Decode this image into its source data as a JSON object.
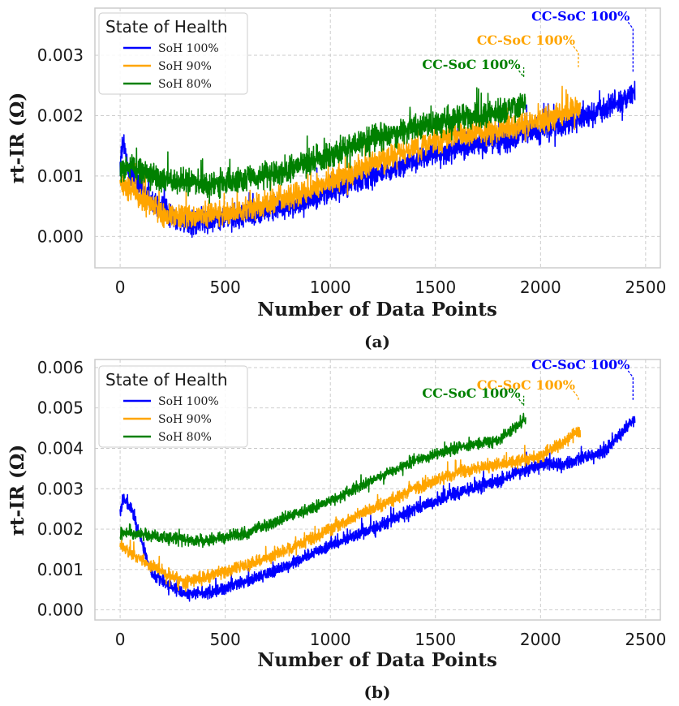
{
  "chart_data": [
    {
      "type": "line",
      "panel": "(a)",
      "xlabel": "Number of Data Points",
      "ylabel": "rt-IR (Ω)",
      "xlim": [
        -120,
        2570
      ],
      "ylim": [
        -0.00052,
        0.00378
      ],
      "xticks": [
        0,
        500,
        1000,
        1500,
        2000,
        2500
      ],
      "yticks": [
        0.0,
        0.001,
        0.002,
        0.003
      ],
      "ytick_labels": [
        "0.000",
        "0.001",
        "0.002",
        "0.003"
      ],
      "grid": true,
      "legend": {
        "title": "State of Health",
        "position": "top-left"
      },
      "series": [
        {
          "name": "SoH 100%",
          "color": "#0000ff",
          "n_points": 2450,
          "noise": 0.00028,
          "trend": [
            [
              0,
              0.0012
            ],
            [
              15,
              0.00155
            ],
            [
              40,
              0.0011
            ],
            [
              150,
              0.0006
            ],
            [
              300,
              0.0002
            ],
            [
              400,
              0.00025
            ],
            [
              600,
              0.00035
            ],
            [
              800,
              0.0005
            ],
            [
              1000,
              0.00075
            ],
            [
              1200,
              0.001
            ],
            [
              1400,
              0.00125
            ],
            [
              1600,
              0.00145
            ],
            [
              1800,
              0.0016
            ],
            [
              2000,
              0.00175
            ],
            [
              2200,
              0.00195
            ],
            [
              2440,
              0.00235
            ]
          ]
        },
        {
          "name": "SoH 90%",
          "color": "#ffa500",
          "n_points": 2190,
          "noise": 0.00028,
          "trend": [
            [
              0,
              0.0009
            ],
            [
              40,
              0.0008
            ],
            [
              200,
              0.00035
            ],
            [
              400,
              0.00035
            ],
            [
              600,
              0.00045
            ],
            [
              800,
              0.00065
            ],
            [
              1000,
              0.0009
            ],
            [
              1200,
              0.0012
            ],
            [
              1400,
              0.00145
            ],
            [
              1600,
              0.0017
            ],
            [
              1800,
              0.00175
            ],
            [
              2000,
              0.0019
            ],
            [
              2180,
              0.00215
            ]
          ]
        },
        {
          "name": "SoH 80%",
          "color": "#008000",
          "n_points": 1930,
          "noise": 0.0003,
          "trend": [
            [
              0,
              0.0011
            ],
            [
              50,
              0.00115
            ],
            [
              200,
              0.00095
            ],
            [
              400,
              0.00085
            ],
            [
              600,
              0.00095
            ],
            [
              800,
              0.0011
            ],
            [
              1000,
              0.00135
            ],
            [
              1200,
              0.0016
            ],
            [
              1400,
              0.0018
            ],
            [
              1600,
              0.00195
            ],
            [
              1800,
              0.00205
            ],
            [
              1920,
              0.0022
            ]
          ]
        }
      ],
      "annotations": [
        {
          "text": "CC-SoC 100%",
          "color": "#0000ff",
          "x": 2440,
          "y": 0.0036,
          "end_y": 0.0027,
          "label_x": 2440,
          "label_y": 0.0036
        },
        {
          "text": "CC-SoC 100%",
          "color": "#ffa500",
          "x": 2180,
          "y": 0.0032,
          "end_y": 0.0028,
          "label_x": 2180,
          "label_y": 0.0032
        },
        {
          "text": "CC-SoC 100%",
          "color": "#008000",
          "x": 1920,
          "y": 0.0028,
          "end_y": 0.0028,
          "label_x": 1920,
          "label_y": 0.0028
        }
      ]
    },
    {
      "type": "line",
      "panel": "(b)",
      "xlabel": "Number of Data Points",
      "ylabel": "rt-IR (Ω)",
      "xlim": [
        -120,
        2570
      ],
      "ylim": [
        -0.00025,
        0.0062
      ],
      "xticks": [
        0,
        500,
        1000,
        1500,
        2000,
        2500
      ],
      "yticks": [
        0.0,
        0.001,
        0.002,
        0.003,
        0.004,
        0.005,
        0.006
      ],
      "ytick_labels": [
        "0.000",
        "0.001",
        "0.002",
        "0.003",
        "0.004",
        "0.005",
        "0.006"
      ],
      "grid": true,
      "legend": {
        "title": "State of Health",
        "position": "top-left"
      },
      "series": [
        {
          "name": "SoH 100%",
          "color": "#0000ff",
          "n_points": 2450,
          "noise": 0.00022,
          "trend": [
            [
              0,
              0.0024
            ],
            [
              15,
              0.0028
            ],
            [
              60,
              0.0024
            ],
            [
              150,
              0.0009
            ],
            [
              300,
              0.0004
            ],
            [
              400,
              0.0004
            ],
            [
              600,
              0.0007
            ],
            [
              800,
              0.0011
            ],
            [
              1000,
              0.0016
            ],
            [
              1200,
              0.002
            ],
            [
              1400,
              0.0025
            ],
            [
              1600,
              0.0029
            ],
            [
              1800,
              0.0032
            ],
            [
              2000,
              0.0036
            ],
            [
              2100,
              0.0036
            ],
            [
              2300,
              0.0039
            ],
            [
              2440,
              0.0047
            ]
          ]
        },
        {
          "name": "SoH 90%",
          "color": "#ffa500",
          "n_points": 2190,
          "noise": 0.00022,
          "trend": [
            [
              0,
              0.0016
            ],
            [
              50,
              0.0014
            ],
            [
              150,
              0.0011
            ],
            [
              300,
              0.0007
            ],
            [
              400,
              0.0008
            ],
            [
              600,
              0.0011
            ],
            [
              800,
              0.0015
            ],
            [
              1000,
              0.002
            ],
            [
              1200,
              0.0025
            ],
            [
              1400,
              0.003
            ],
            [
              1600,
              0.0034
            ],
            [
              1800,
              0.0036
            ],
            [
              2000,
              0.0038
            ],
            [
              2180,
              0.0044
            ]
          ]
        },
        {
          "name": "SoH 80%",
          "color": "#008000",
          "n_points": 1930,
          "noise": 0.0002,
          "trend": [
            [
              0,
              0.0019
            ],
            [
              50,
              0.0019
            ],
            [
              200,
              0.0018
            ],
            [
              400,
              0.0017
            ],
            [
              600,
              0.0019
            ],
            [
              800,
              0.0023
            ],
            [
              1000,
              0.0027
            ],
            [
              1200,
              0.0032
            ],
            [
              1400,
              0.0037
            ],
            [
              1600,
              0.004
            ],
            [
              1800,
              0.0042
            ],
            [
              1920,
              0.0047
            ]
          ]
        }
      ],
      "annotations": [
        {
          "text": "CC-SoC 100%",
          "color": "#0000ff",
          "x": 2440,
          "y": 0.006,
          "end_y": 0.0052,
          "label_x": 2440,
          "label_y": 0.006
        },
        {
          "text": "CC-SoC 100%",
          "color": "#ffa500",
          "x": 2180,
          "y": 0.0055,
          "end_y": 0.0052,
          "label_x": 2180,
          "label_y": 0.0055
        },
        {
          "text": "CC-SoC 100%",
          "color": "#008000",
          "x": 1920,
          "y": 0.0053,
          "end_y": 0.0053,
          "label_x": 1920,
          "label_y": 0.0053
        }
      ]
    }
  ]
}
